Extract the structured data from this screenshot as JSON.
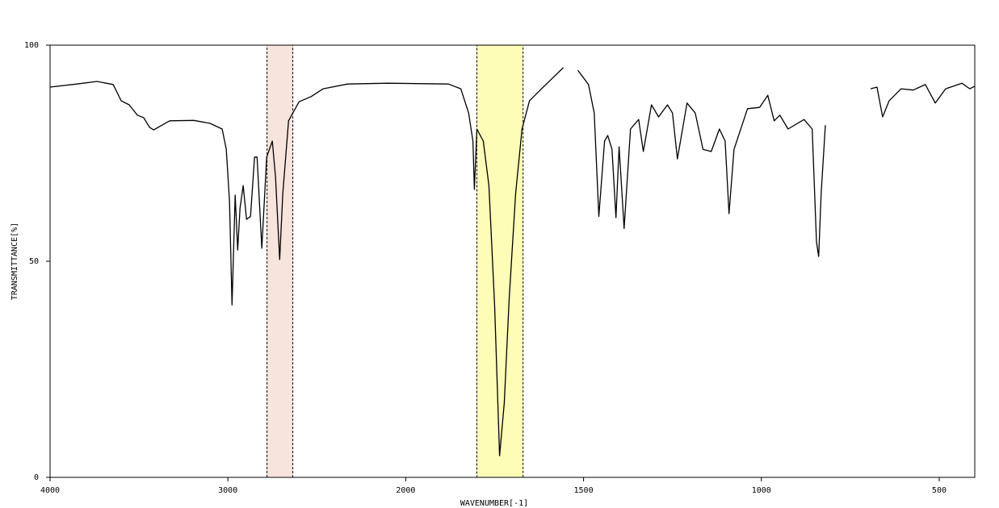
{
  "chart_data": {
    "type": "line",
    "x_label": "WAVENUMBER[-1]",
    "y_label": "TRANSMITTANCE[%]",
    "xlim": [
      4000,
      400
    ],
    "xticks": [
      4000,
      3000,
      2000,
      1500,
      1000,
      500
    ],
    "ylim": [
      0,
      100
    ],
    "yticks": [
      0,
      50,
      100
    ],
    "grid": false,
    "highlights": [
      {
        "from": 2780,
        "to": 2635,
        "color": "#f7e4dc"
      },
      {
        "from": 1800,
        "to": 1670,
        "color": "#fdfdb8"
      }
    ],
    "x": [
      4000,
      3850,
      3736,
      3645,
      3600,
      3555,
      3509,
      3473,
      3441,
      3418,
      3327,
      3191,
      3100,
      3032,
      3009,
      2991,
      2977,
      2959,
      2945,
      2932,
      2914,
      2895,
      2873,
      2850,
      2836,
      2809,
      2782,
      2750,
      2732,
      2709,
      2691,
      2659,
      2600,
      2532,
      2464,
      2327,
      2100,
      1880,
      1845,
      1823,
      1811,
      1807,
      1800,
      1782,
      1766,
      1750,
      1736,
      1723,
      1709,
      1691,
      1673,
      1652,
      1618,
      1557,
      null,
      1516,
      1486,
      1470,
      1457,
      1441,
      1432,
      1420,
      1409,
      1400,
      1386,
      1368,
      1345,
      1332,
      1309,
      1289,
      1264,
      1250,
      1236,
      1209,
      1186,
      1164,
      1141,
      1118,
      1102,
      1091,
      1077,
      1039,
      1005,
      982,
      964,
      948,
      925,
      880,
      857,
      845,
      839,
      832,
      820,
      null,
      693,
      675,
      659,
      641,
      607,
      573,
      539,
      511,
      482,
      436,
      414,
      400
    ],
    "series": [
      {
        "color": "#000000",
        "values": [
          90.3,
          91.0,
          91.6,
          90.9,
          87.1,
          86.2,
          83.8,
          83.2,
          81.0,
          80.4,
          82.5,
          82.6,
          81.9,
          80.6,
          75.9,
          63.8,
          39.9,
          65.3,
          52.6,
          62.3,
          67.5,
          59.7,
          60.4,
          74.1,
          74.1,
          53.0,
          74.1,
          77.8,
          69.4,
          50.4,
          65.7,
          82.5,
          86.9,
          88.1,
          89.9,
          91.0,
          91.2,
          91.0,
          89.9,
          84.3,
          77.8,
          66.6,
          80.6,
          77.8,
          67.5,
          39.6,
          5.0,
          17.2,
          41.4,
          65.7,
          80.6,
          87.1,
          89.9,
          94.8,
          null,
          94.2,
          90.9,
          84.3,
          60.4,
          77.8,
          79.1,
          75.9,
          60.1,
          76.5,
          57.6,
          80.6,
          82.8,
          75.4,
          86.2,
          83.4,
          86.2,
          84.3,
          73.7,
          86.6,
          84.3,
          75.9,
          75.4,
          80.6,
          77.8,
          61.0,
          75.9,
          85.3,
          85.6,
          88.4,
          82.5,
          83.8,
          80.6,
          82.8,
          80.6,
          54.5,
          51.1,
          65.7,
          81.5,
          null,
          89.9,
          90.3,
          83.4,
          87.1,
          89.9,
          89.6,
          90.9,
          86.6,
          89.9,
          91.2,
          89.9,
          90.5
        ]
      }
    ]
  }
}
